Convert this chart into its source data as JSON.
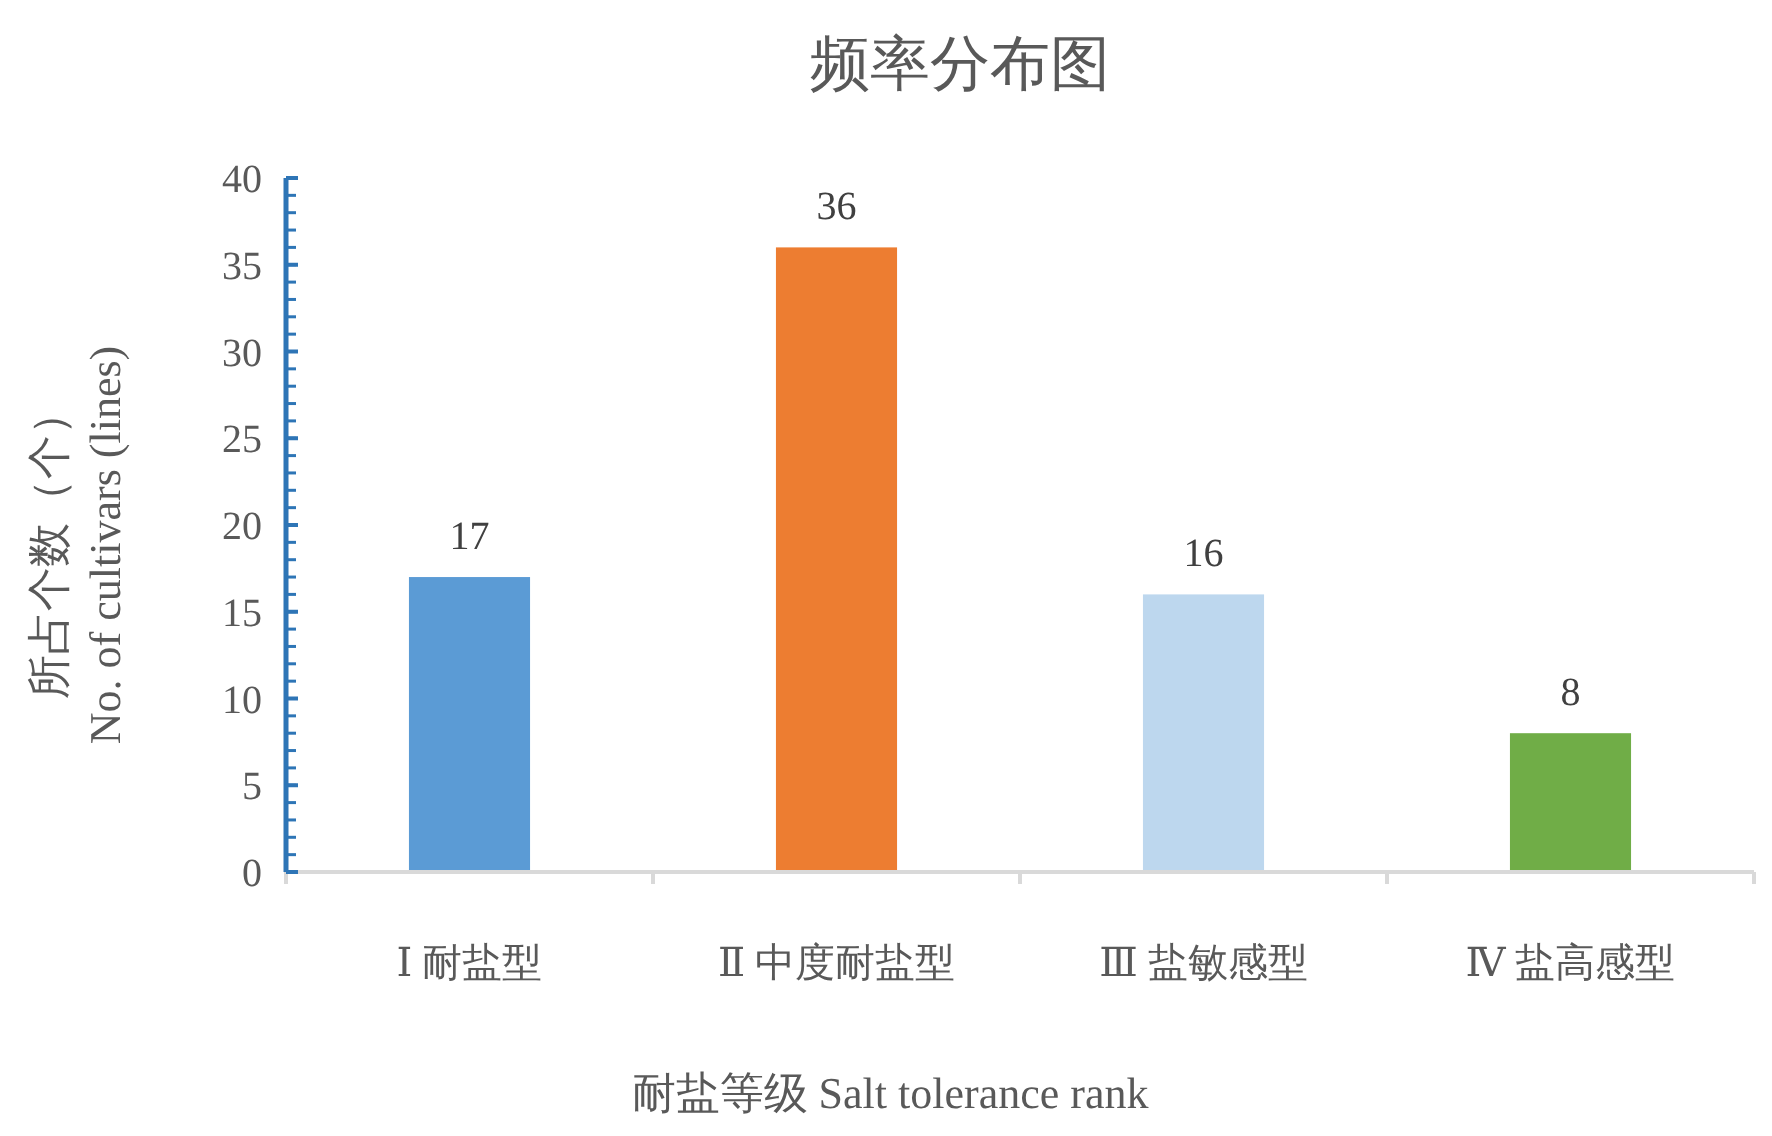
{
  "chart_data": {
    "type": "bar",
    "title": "频率分布图",
    "xlabel": "耐盐等级 Salt tolerance rank",
    "ylabel": "所占个数（个）\nNo. of cultivars (lines)",
    "categories": [
      "Ⅰ 耐盐型",
      "Ⅱ 中度耐盐型",
      "Ⅲ 盐敏感型",
      "Ⅳ 盐高感型"
    ],
    "values": [
      17,
      36,
      16,
      8
    ],
    "colors": [
      "#5b9bd5",
      "#ed7d31",
      "#bdd7ee",
      "#70ad47"
    ],
    "ylim": [
      0,
      40
    ],
    "yticks": [
      0,
      5,
      10,
      15,
      20,
      25,
      30,
      35,
      40
    ],
    "data_labels": true
  }
}
